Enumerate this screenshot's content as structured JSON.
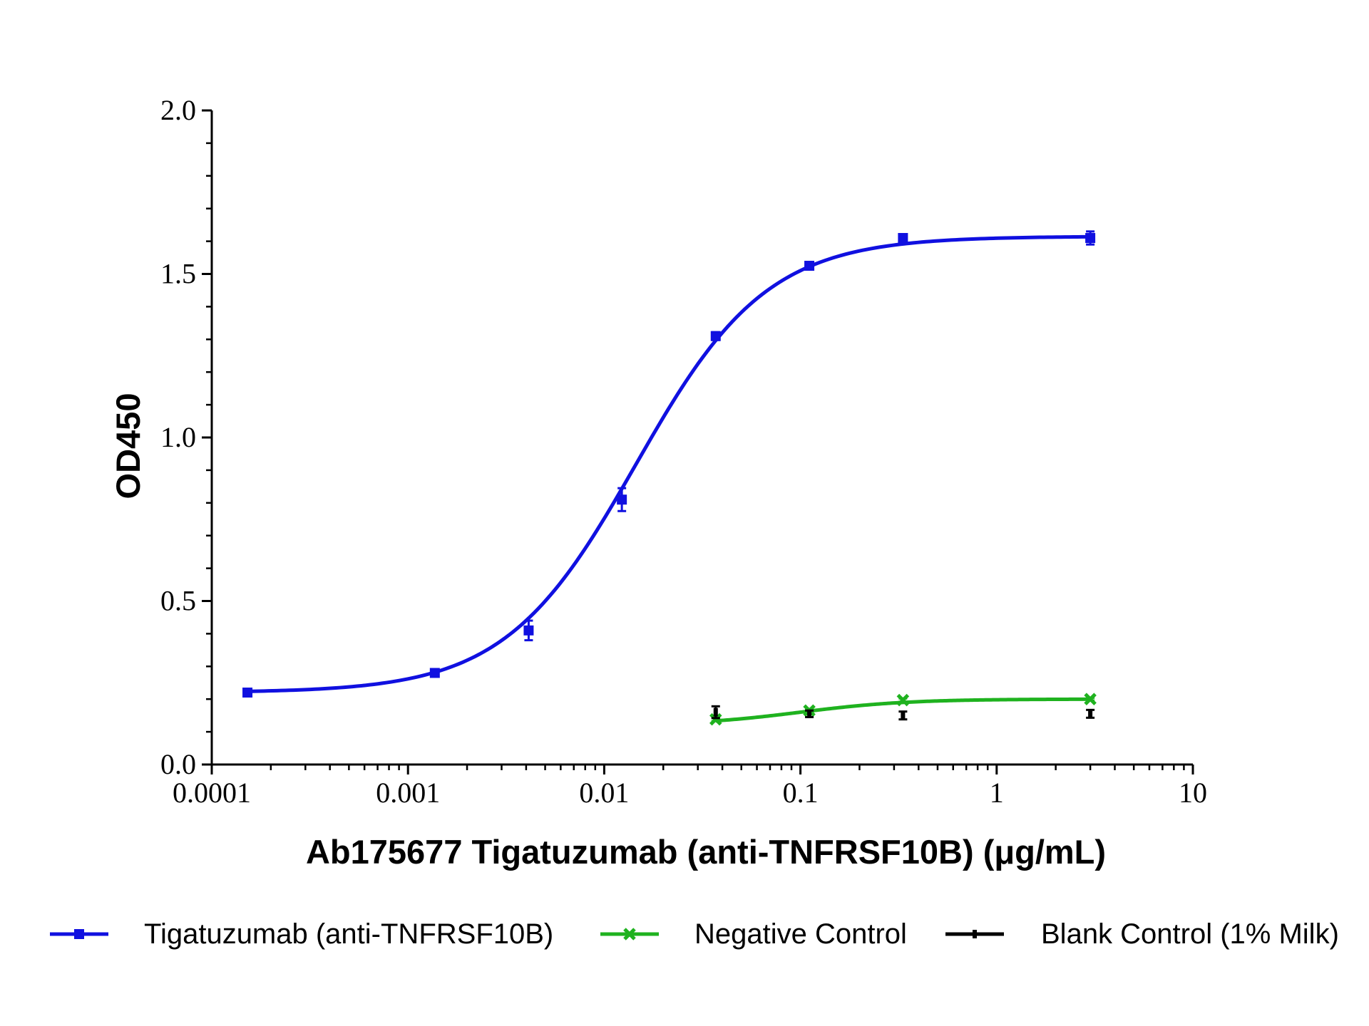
{
  "chart_data": {
    "type": "scatter",
    "xlabel": "Ab175677 Tigatuzumab (anti-TNFRSF10B) (μg/mL)",
    "ylabel": "OD450",
    "x_scale": "log",
    "xlim": [
      0.0001,
      10
    ],
    "ylim": [
      0,
      2.0
    ],
    "x_ticks": [
      0.0001,
      0.001,
      0.01,
      0.1,
      1,
      10
    ],
    "x_tick_labels": [
      "0.0001",
      "0.001",
      "0.01",
      "0.1",
      "1",
      "10"
    ],
    "y_ticks": [
      0,
      0.5,
      1.0,
      1.5,
      2.0
    ],
    "y_tick_labels": [
      "0.0",
      "0.5",
      "1.0",
      "1.5",
      "2.0"
    ],
    "grid": false,
    "legend_position": "bottom",
    "series": [
      {
        "name": "Tigatuzumab (anti-TNFRSF10B)",
        "color": "#1010e0",
        "marker": "square",
        "fit": "4PL",
        "fit_params": {
          "bottom": 0.22,
          "top": 1.615,
          "ec50": 0.0145,
          "hill": 1.3
        },
        "points": [
          {
            "x": 0.000152,
            "y": 0.22,
            "err": 0.008
          },
          {
            "x": 0.00137,
            "y": 0.28,
            "err": 0.01
          },
          {
            "x": 0.00412,
            "y": 0.41,
            "err": 0.03
          },
          {
            "x": 0.0123,
            "y": 0.81,
            "err": 0.035
          },
          {
            "x": 0.037,
            "y": 1.31,
            "err": 0.012
          },
          {
            "x": 0.111,
            "y": 1.525,
            "err": 0.01
          },
          {
            "x": 0.333,
            "y": 1.61,
            "err": 0.01
          },
          {
            "x": 3.0,
            "y": 1.61,
            "err": 0.02
          }
        ]
      },
      {
        "name": "Negative Control",
        "color": "#1fb21f",
        "marker": "x",
        "fit": "4PL",
        "fit_params": {
          "bottom": 0.12,
          "top": 0.2,
          "ec50": 0.1,
          "hill": 1.6
        },
        "points": [
          {
            "x": 0.037,
            "y": 0.138,
            "err": 0.005
          },
          {
            "x": 0.111,
            "y": 0.165,
            "err": 0.005
          },
          {
            "x": 0.333,
            "y": 0.197,
            "err": 0.005
          },
          {
            "x": 3.0,
            "y": 0.2,
            "err": 0.004
          }
        ]
      },
      {
        "name": "Blank Control (1% Milk)",
        "color": "#000000",
        "marker": "dash",
        "fit": "none",
        "points": [
          {
            "x": 0.037,
            "y": 0.16,
            "err": 0.018
          },
          {
            "x": 0.111,
            "y": 0.155,
            "err": 0.01
          },
          {
            "x": 0.333,
            "y": 0.15,
            "err": 0.012
          },
          {
            "x": 3.0,
            "y": 0.155,
            "err": 0.012
          }
        ]
      }
    ]
  }
}
